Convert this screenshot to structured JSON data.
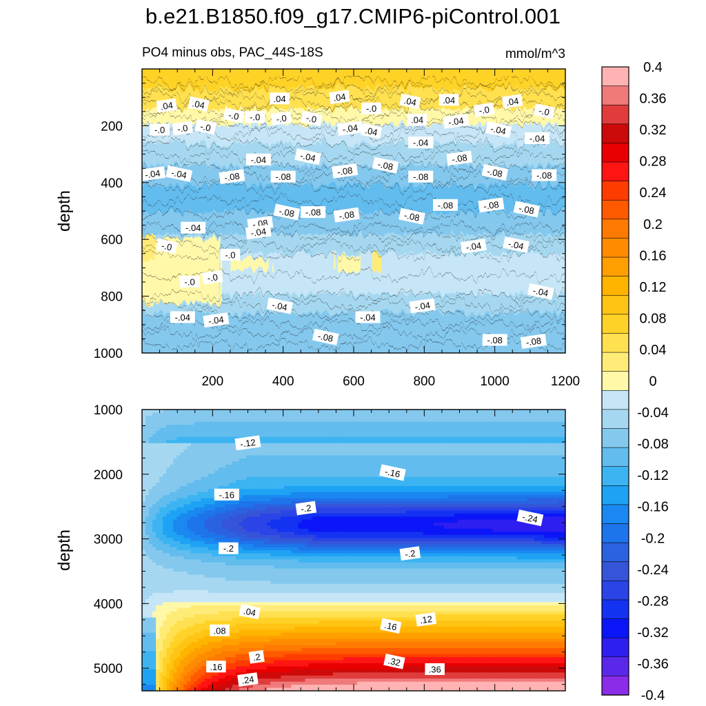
{
  "title": "b.e21.B1850.f09_g17.CMIP6-piControl.001",
  "subtitle_left": "PO4 minus obs, PAC_44S-18S",
  "subtitle_right": "mmol/m^3",
  "chart_data": {
    "type": "contour",
    "variable": "PO4 minus obs",
    "region": "PAC_44S-18S",
    "units": "mmol/m^3",
    "xlim": [
      0,
      1200
    ],
    "x_ticks": [
      200,
      400,
      600,
      800,
      1000,
      1200
    ],
    "panels": [
      {
        "name": "upper",
        "ylabel": "depth",
        "ylim": [
          0,
          1000
        ],
        "y_ticks": [
          200,
          400,
          600,
          800,
          1000
        ],
        "x_tick_labels_shown": true,
        "contour_labels": [
          {
            "text": ".04",
            "x": 70,
            "y": 130
          },
          {
            "text": ".04",
            "x": 160,
            "y": 125
          },
          {
            "text": ".04",
            "x": 390,
            "y": 105
          },
          {
            "text": ".04",
            "x": 560,
            "y": 100
          },
          {
            "text": ".04",
            "x": 760,
            "y": 115
          },
          {
            "text": ".04",
            "x": 870,
            "y": 110
          },
          {
            "text": ".04",
            "x": 1050,
            "y": 115
          },
          {
            "text": "-.0",
            "x": 260,
            "y": 165
          },
          {
            "text": "-.0",
            "x": 320,
            "y": 170
          },
          {
            "text": "-.0",
            "x": 395,
            "y": 175
          },
          {
            "text": "-.0",
            "x": 480,
            "y": 175
          },
          {
            "text": "-.0",
            "x": 650,
            "y": 140
          },
          {
            "text": "-.0",
            "x": 970,
            "y": 145
          },
          {
            "text": "-.0",
            "x": 1140,
            "y": 150
          },
          {
            "text": "-.0",
            "x": 50,
            "y": 215
          },
          {
            "text": "-.0",
            "x": 115,
            "y": 210
          },
          {
            "text": "-.0",
            "x": 180,
            "y": 205
          },
          {
            "text": ".04",
            "x": 780,
            "y": 180
          },
          {
            "text": "-.04",
            "x": 890,
            "y": 185
          },
          {
            "text": "-.04",
            "x": 1010,
            "y": 215
          },
          {
            "text": "-.04",
            "x": 1120,
            "y": 245
          },
          {
            "text": "-.04",
            "x": 590,
            "y": 210
          },
          {
            "text": ".04",
            "x": 650,
            "y": 220
          },
          {
            "text": "-.04",
            "x": 790,
            "y": 260
          },
          {
            "text": "-.04",
            "x": 30,
            "y": 370
          },
          {
            "text": "-.04",
            "x": 105,
            "y": 370
          },
          {
            "text": "-.04",
            "x": 330,
            "y": 320
          },
          {
            "text": "-.08",
            "x": 255,
            "y": 380
          },
          {
            "text": "-.04",
            "x": 470,
            "y": 310
          },
          {
            "text": "-.08",
            "x": 400,
            "y": 380
          },
          {
            "text": "-.08",
            "x": 575,
            "y": 360
          },
          {
            "text": "-.08",
            "x": 690,
            "y": 340
          },
          {
            "text": "-.08",
            "x": 790,
            "y": 380
          },
          {
            "text": "-.08",
            "x": 900,
            "y": 315
          },
          {
            "text": "-.08",
            "x": 1000,
            "y": 365
          },
          {
            "text": "-.08",
            "x": 1140,
            "y": 375
          },
          {
            "text": "-.08",
            "x": 335,
            "y": 545
          },
          {
            "text": "-.08",
            "x": 410,
            "y": 505
          },
          {
            "text": "-.08",
            "x": 485,
            "y": 505
          },
          {
            "text": "-.08",
            "x": 580,
            "y": 515
          },
          {
            "text": "-.08",
            "x": 765,
            "y": 520
          },
          {
            "text": "-.08",
            "x": 860,
            "y": 480
          },
          {
            "text": "-.08",
            "x": 990,
            "y": 480
          },
          {
            "text": "-.08",
            "x": 1090,
            "y": 495
          },
          {
            "text": "-.04",
            "x": 145,
            "y": 560
          },
          {
            "text": "-.04",
            "x": 330,
            "y": 575
          },
          {
            "text": "-.0",
            "x": 70,
            "y": 625
          },
          {
            "text": "-.0",
            "x": 250,
            "y": 655
          },
          {
            "text": "-.04",
            "x": 940,
            "y": 625
          },
          {
            "text": "-.04",
            "x": 1060,
            "y": 620
          },
          {
            "text": "-.0",
            "x": 135,
            "y": 750
          },
          {
            "text": "-.0",
            "x": 200,
            "y": 735
          },
          {
            "text": "-.04",
            "x": 390,
            "y": 835
          },
          {
            "text": "-.04",
            "x": 640,
            "y": 875
          },
          {
            "text": "-.04",
            "x": 795,
            "y": 835
          },
          {
            "text": "-.04",
            "x": 1130,
            "y": 785
          },
          {
            "text": "-.04",
            "x": 115,
            "y": 875
          },
          {
            "text": "-.04",
            "x": 210,
            "y": 885
          },
          {
            "text": "-.08",
            "x": 520,
            "y": 945
          },
          {
            "text": "-.08",
            "x": 1000,
            "y": 955
          },
          {
            "text": "-.08",
            "x": 1110,
            "y": 960
          }
        ]
      },
      {
        "name": "lower",
        "ylabel": "depth",
        "ylim": [
          1000,
          5350
        ],
        "y_ticks": [
          1000,
          2000,
          3000,
          4000,
          5000
        ],
        "x_tick_labels_shown": false,
        "contour_labels": [
          {
            "text": "-.12",
            "x": 300,
            "y": 1520
          },
          {
            "text": "-.16",
            "x": 710,
            "y": 1980
          },
          {
            "text": "-.16",
            "x": 240,
            "y": 2320
          },
          {
            "text": "-.2",
            "x": 465,
            "y": 2530
          },
          {
            "text": "-.24",
            "x": 1100,
            "y": 2680
          },
          {
            "text": "-.2",
            "x": 245,
            "y": 3150
          },
          {
            "text": "-.2",
            "x": 760,
            "y": 3230
          },
          {
            "text": ".04",
            "x": 305,
            "y": 4130
          },
          {
            "text": ".08",
            "x": 220,
            "y": 4420
          },
          {
            "text": ".12",
            "x": 805,
            "y": 4250
          },
          {
            "text": ".16",
            "x": 705,
            "y": 4350
          },
          {
            "text": ".16",
            "x": 210,
            "y": 4980
          },
          {
            "text": ".2",
            "x": 325,
            "y": 4830
          },
          {
            "text": ".32",
            "x": 715,
            "y": 4900
          },
          {
            "text": ".36",
            "x": 830,
            "y": 5020
          },
          {
            "text": ".24",
            "x": 300,
            "y": 5180
          }
        ]
      }
    ],
    "colorbar": {
      "levels": [
        -0.4,
        -0.36,
        -0.32,
        -0.28,
        -0.24,
        -0.2,
        -0.16,
        -0.12,
        -0.08,
        -0.04,
        0,
        0.04,
        0.08,
        0.12,
        0.16,
        0.2,
        0.24,
        0.28,
        0.32,
        0.36,
        0.4
      ],
      "labels": [
        "0.4",
        "0.36",
        "0.32",
        "0.28",
        "0.24",
        "0.2",
        "0.16",
        "0.12",
        "0.08",
        "0.04",
        "0",
        "-0.04",
        "-0.08",
        "-0.12",
        "-0.16",
        "-0.2",
        "-0.24",
        "-0.28",
        "-0.32",
        "-0.36",
        "-0.4"
      ],
      "colors_top_to_bottom": [
        "#ffb3b3",
        "#f07a7a",
        "#e03c3c",
        "#cc0a0a",
        "#e80000",
        "#ff1414",
        "#ff3c00",
        "#ff5a00",
        "#ff7a00",
        "#ff8c00",
        "#ffa000",
        "#ffb400",
        "#ffc414",
        "#ffd228",
        "#ffe050",
        "#ffec78",
        "#fff8a8",
        "#c6e6f7",
        "#a5d8f0",
        "#84c8ee",
        "#62bcee",
        "#3db4f2",
        "#1ea2f4",
        "#1a88f0",
        "#1e74ea",
        "#2a62e0",
        "#3654d8",
        "#2a44e6",
        "#1432f2",
        "#0a16f8",
        "#2e1ef0",
        "#5a28ea",
        "#8a2ce8"
      ]
    }
  }
}
